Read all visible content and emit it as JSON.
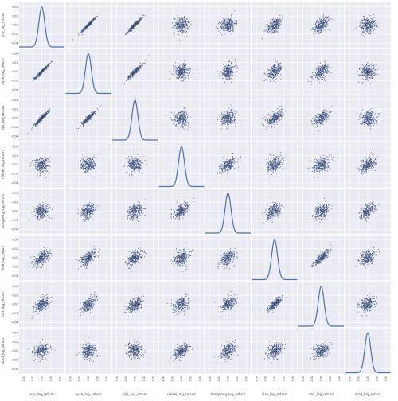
{
  "chart_data": {
    "type": "scatter",
    "subtype": "pair-matrix",
    "variables": [
      "snp_log_return",
      "nyse_log_return",
      "djia_log_return",
      "nikkei_log_return",
      "hangseng_log_return",
      "ftse_log_return",
      "dax_log_return",
      "aord_log_return"
    ],
    "diagonal": "kde",
    "tick_values": [
      -0.04,
      -0.02,
      0.0,
      0.02,
      0.04
    ],
    "axis_range": [
      -0.05,
      0.05
    ],
    "grid": true,
    "colors": {
      "background": "#eaeaf2",
      "grid": "#ffffff",
      "points": "#3b4f7a",
      "kde": "#4c72b0",
      "text": "#444444"
    },
    "correlation_matrix": [
      [
        1.0,
        0.97,
        0.96,
        0.05,
        0.25,
        0.55,
        0.55,
        0.15
      ],
      [
        0.97,
        1.0,
        0.94,
        0.05,
        0.25,
        0.55,
        0.55,
        0.15
      ],
      [
        0.96,
        0.94,
        1.0,
        0.05,
        0.25,
        0.55,
        0.55,
        0.15
      ],
      [
        0.05,
        0.05,
        0.05,
        1.0,
        0.6,
        0.35,
        0.3,
        0.55
      ],
      [
        0.25,
        0.25,
        0.25,
        0.6,
        1.0,
        0.45,
        0.4,
        0.5
      ],
      [
        0.55,
        0.55,
        0.55,
        0.35,
        0.45,
        1.0,
        0.85,
        0.4
      ],
      [
        0.55,
        0.55,
        0.55,
        0.3,
        0.4,
        0.85,
        1.0,
        0.35
      ],
      [
        0.15,
        0.15,
        0.15,
        0.55,
        0.5,
        0.4,
        0.35,
        1.0
      ]
    ]
  }
}
